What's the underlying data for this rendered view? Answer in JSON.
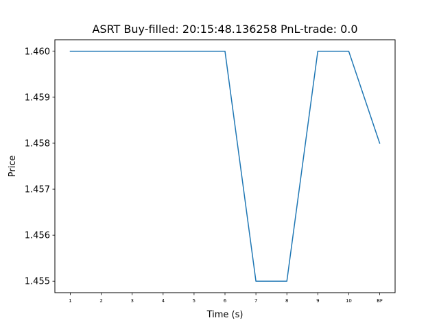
{
  "chart_data": {
    "type": "line",
    "title": "ASRT  Buy-filled:  20:15:48.136258  PnL-trade:  0.0",
    "xlabel": "Time (s)",
    "ylabel": "Price",
    "categories": [
      "1",
      "2",
      "3",
      "4",
      "5",
      "6",
      "7",
      "8",
      "9",
      "10",
      "BF"
    ],
    "series": [
      {
        "values": [
          1.46,
          1.46,
          1.46,
          1.46,
          1.46,
          1.46,
          1.455,
          1.455,
          1.46,
          1.46,
          1.458
        ],
        "color": "#1f77b4"
      }
    ],
    "ylim": [
      1.45475,
      1.46025
    ],
    "yticks": [
      "1.455",
      "1.456",
      "1.457",
      "1.458",
      "1.459",
      "1.460"
    ],
    "grid": false
  }
}
